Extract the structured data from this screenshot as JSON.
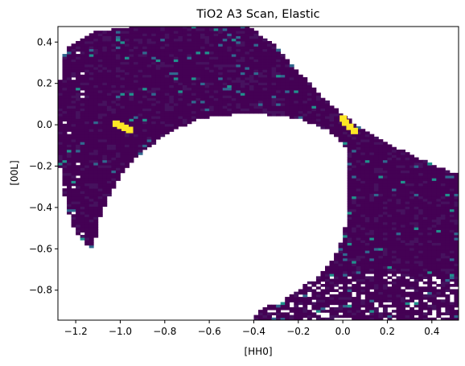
{
  "chart_data": {
    "type": "heatmap",
    "title": "TiO2 A3 Scan, Elastic",
    "xlabel": "[HH0]",
    "ylabel": "[00L]",
    "xlim": [
      -1.28,
      0.52
    ],
    "ylim": [
      -0.945,
      0.475
    ],
    "xticks": [
      -1.2,
      -1.0,
      -0.8,
      -0.6,
      -0.4,
      -0.2,
      0.0,
      0.2,
      0.4
    ],
    "xtick_labels": [
      "−1.2",
      "−1.0",
      "−0.8",
      "−0.6",
      "−0.4",
      "−0.2",
      "0.0",
      "0.2",
      "0.4"
    ],
    "yticks": [
      0.4,
      0.2,
      0.0,
      -0.2,
      -0.4,
      -0.6,
      -0.8
    ],
    "ytick_labels": [
      "0.4",
      "0.2",
      "0.0",
      "−0.2",
      "−0.4",
      "−0.6",
      "−0.8"
    ],
    "colormap": "viridis",
    "grid": false,
    "colors": {
      "background": "#440154",
      "low_variation": "#46125e",
      "medium": "#31688e",
      "teal": "#21918c",
      "high": "#fde725",
      "frame": "#000000"
    },
    "bright_spots": [
      {
        "x": -1.02,
        "y": 0.005
      },
      {
        "x": -1.0,
        "y": -0.005
      },
      {
        "x": -0.98,
        "y": -0.015
      },
      {
        "x": -0.96,
        "y": -0.025
      },
      {
        "x": 0.0,
        "y": 0.03
      },
      {
        "x": 0.01,
        "y": 0.01
      },
      {
        "x": 0.03,
        "y": -0.01
      },
      {
        "x": 0.05,
        "y": -0.03
      }
    ],
    "regions": [
      {
        "name": "upper-arc",
        "outer_polygon": [
          [
            -1.24,
            0.38
          ],
          [
            -1.12,
            0.45
          ],
          [
            -0.95,
            0.475
          ],
          [
            -0.6,
            0.475
          ],
          [
            -0.42,
            0.475
          ],
          [
            -0.3,
            0.38
          ],
          [
            -0.2,
            0.26
          ],
          [
            -0.1,
            0.14
          ],
          [
            0.0,
            0.05
          ],
          [
            0.08,
            -0.02
          ],
          [
            0.16,
            -0.07
          ],
          [
            0.24,
            -0.11
          ],
          [
            0.32,
            -0.15
          ],
          [
            0.42,
            -0.2
          ],
          [
            0.52,
            -0.24
          ]
        ],
        "inner_polygon": [
          [
            0.52,
            -0.24
          ],
          [
            0.3,
            -0.28
          ],
          [
            0.2,
            -0.26
          ],
          [
            0.1,
            -0.21
          ],
          [
            0.02,
            -0.12
          ],
          [
            -0.06,
            -0.03
          ],
          [
            -0.2,
            0.03
          ],
          [
            -0.35,
            0.05
          ],
          [
            -0.5,
            0.05
          ],
          [
            -0.65,
            0.03
          ],
          [
            -0.8,
            -0.05
          ],
          [
            -0.92,
            -0.15
          ],
          [
            -1.0,
            -0.25
          ],
          [
            -1.06,
            -0.36
          ],
          [
            -1.1,
            -0.48
          ],
          [
            -1.12,
            -0.6
          ],
          [
            -1.16,
            -0.58
          ],
          [
            -1.22,
            -0.48
          ],
          [
            -1.26,
            -0.3
          ],
          [
            -1.28,
            -0.12
          ],
          [
            -1.28,
            0.14
          ],
          [
            -1.26,
            0.3
          ]
        ]
      },
      {
        "name": "lower-arc",
        "polygon": [
          [
            0.52,
            -0.24
          ],
          [
            0.42,
            -0.2
          ],
          [
            0.32,
            -0.15
          ],
          [
            0.24,
            -0.11
          ],
          [
            0.16,
            -0.07
          ],
          [
            0.08,
            -0.03
          ],
          [
            0.03,
            -0.1
          ],
          [
            0.01,
            -0.2
          ],
          [
            0.02,
            -0.32
          ],
          [
            0.02,
            -0.44
          ],
          [
            0.0,
            -0.54
          ],
          [
            -0.04,
            -0.64
          ],
          [
            -0.1,
            -0.72
          ],
          [
            -0.2,
            -0.8
          ],
          [
            -0.3,
            -0.86
          ],
          [
            -0.38,
            -0.9
          ],
          [
            -0.4,
            -0.945
          ],
          [
            0.52,
            -0.945
          ]
        ]
      }
    ]
  }
}
